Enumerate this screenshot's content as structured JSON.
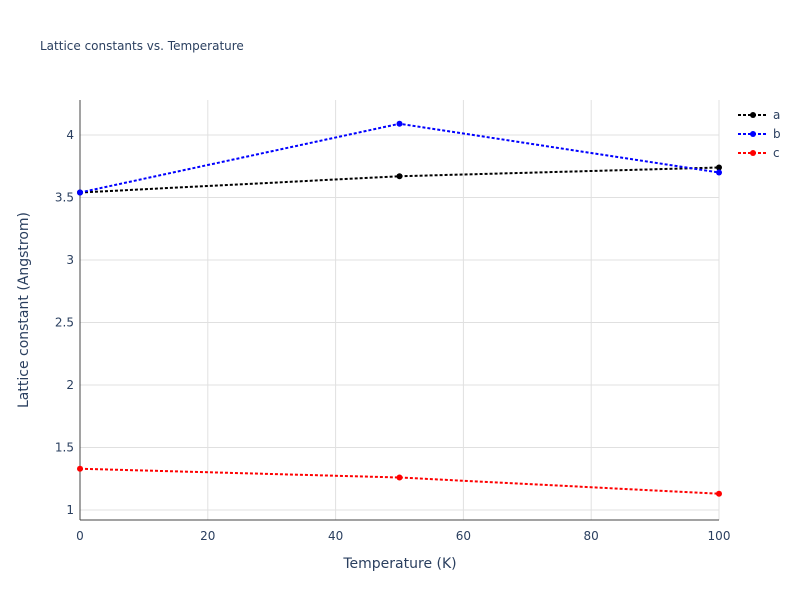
{
  "chart_data": {
    "type": "line",
    "title": "Lattice constants vs. Temperature",
    "x_label": "Temperature (K)",
    "y_label": "Lattice constant (Angstrom)",
    "x": [
      0,
      50,
      100
    ],
    "series": [
      {
        "name": "a",
        "color": "#000000",
        "values": [
          3.54,
          3.67,
          3.74
        ]
      },
      {
        "name": "b",
        "color": "#0000ff",
        "values": [
          3.54,
          4.09,
          3.7
        ]
      },
      {
        "name": "c",
        "color": "#ff0000",
        "values": [
          1.33,
          1.26,
          1.13
        ]
      }
    ],
    "xlim": [
      0,
      100
    ],
    "xticks": [
      0,
      20,
      40,
      60,
      80,
      100
    ],
    "ylim": [
      0.92,
      4.28
    ],
    "yticks": [
      1,
      1.5,
      2,
      2.5,
      3,
      3.5,
      4
    ],
    "grid": true,
    "legend": "top-right",
    "line_style": "dotted"
  }
}
